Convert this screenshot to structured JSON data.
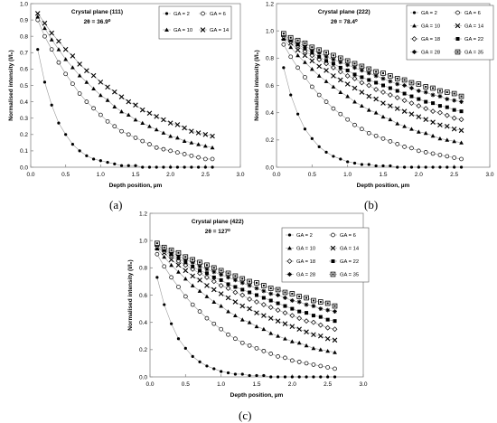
{
  "panel_labels": {
    "a": "(a)",
    "b": "(b)",
    "c": "(c)"
  },
  "chart_data": [
    {
      "type": "scatter",
      "title": "Crystal plane (111)",
      "subtitle": "2θ = 36.9⁰",
      "xlabel": "Depth position, µm",
      "ylabel": "Normalised intensity (I/I₀)",
      "xlim": [
        0.0,
        3.0
      ],
      "ylim": [
        0.0,
        1.0
      ],
      "xticks": [
        "0.0",
        "0.5",
        "1.0",
        "1.5",
        "2.0",
        "2.5",
        "3.0"
      ],
      "yticks": [
        "0.0",
        "0.1",
        "0.2",
        "0.3",
        "0.4",
        "0.5",
        "0.6",
        "0.7",
        "0.8",
        "0.9",
        "1.0"
      ],
      "grid": false,
      "legend_placement": "top-right",
      "x": [
        0.1,
        0.2,
        0.3,
        0.4,
        0.5,
        0.6,
        0.7,
        0.8,
        0.9,
        1.0,
        1.1,
        1.2,
        1.3,
        1.4,
        1.5,
        1.6,
        1.7,
        1.8,
        1.9,
        2.0,
        2.1,
        2.2,
        2.3,
        2.4,
        2.5,
        2.6
      ],
      "series": [
        {
          "name": "GA = 2",
          "marker": "filled-circle",
          "values": [
            0.72,
            0.52,
            0.38,
            0.27,
            0.2,
            0.14,
            0.1,
            0.07,
            0.05,
            0.04,
            0.03,
            0.02,
            0.01,
            0.01,
            0.01,
            0.0,
            0.0,
            0.0,
            0.0,
            0.0,
            0.0,
            0.0,
            0.0,
            0.0,
            0.0,
            0.0
          ]
        },
        {
          "name": "GA = 6",
          "marker": "open-circle",
          "values": [
            0.9,
            0.8,
            0.72,
            0.64,
            0.57,
            0.51,
            0.45,
            0.4,
            0.36,
            0.32,
            0.28,
            0.25,
            0.22,
            0.2,
            0.18,
            0.16,
            0.14,
            0.12,
            0.11,
            0.1,
            0.09,
            0.08,
            0.07,
            0.06,
            0.05,
            0.05
          ]
        },
        {
          "name": "GA = 10",
          "marker": "filled-triangle",
          "values": [
            0.92,
            0.85,
            0.78,
            0.72,
            0.66,
            0.61,
            0.56,
            0.52,
            0.48,
            0.44,
            0.41,
            0.37,
            0.34,
            0.32,
            0.29,
            0.27,
            0.25,
            0.23,
            0.21,
            0.19,
            0.18,
            0.16,
            0.15,
            0.14,
            0.13,
            0.12
          ]
        },
        {
          "name": "GA = 14",
          "marker": "x",
          "values": [
            0.94,
            0.88,
            0.82,
            0.77,
            0.72,
            0.68,
            0.63,
            0.59,
            0.56,
            0.52,
            0.49,
            0.46,
            0.43,
            0.4,
            0.38,
            0.35,
            0.33,
            0.31,
            0.29,
            0.27,
            0.26,
            0.24,
            0.22,
            0.21,
            0.2,
            0.19
          ]
        }
      ]
    },
    {
      "type": "scatter",
      "title": "Crystal plane (222)",
      "subtitle": "2θ = 78.4⁰",
      "xlabel": "Depth position, µm",
      "ylabel": "Normalised intensity (I/I₀)",
      "xlim": [
        0.0,
        3.0
      ],
      "ylim": [
        0.0,
        1.2
      ],
      "xticks": [
        "0.0",
        "0.5",
        "1.0",
        "1.5",
        "2.0",
        "2.5",
        "3.0"
      ],
      "yticks": [
        "0.0",
        "0.2",
        "0.4",
        "0.6",
        "0.8",
        "1.0",
        "1.2"
      ],
      "grid": false,
      "legend_placement": "top-right",
      "x": [
        0.1,
        0.2,
        0.3,
        0.4,
        0.5,
        0.6,
        0.7,
        0.8,
        0.9,
        1.0,
        1.1,
        1.2,
        1.3,
        1.4,
        1.5,
        1.6,
        1.7,
        1.8,
        1.9,
        2.0,
        2.1,
        2.2,
        2.3,
        2.4,
        2.5,
        2.6
      ],
      "series": [
        {
          "name": "GA = 2",
          "marker": "filled-circle",
          "values": [
            0.73,
            0.53,
            0.39,
            0.28,
            0.21,
            0.15,
            0.11,
            0.08,
            0.06,
            0.04,
            0.03,
            0.02,
            0.02,
            0.01,
            0.01,
            0.01,
            0.0,
            0.0,
            0.0,
            0.0,
            0.0,
            0.0,
            0.0,
            0.0,
            0.0,
            0.0
          ]
        },
        {
          "name": "GA = 6",
          "marker": "open-circle",
          "values": [
            0.9,
            0.81,
            0.73,
            0.66,
            0.59,
            0.53,
            0.48,
            0.43,
            0.39,
            0.35,
            0.31,
            0.28,
            0.25,
            0.23,
            0.21,
            0.19,
            0.17,
            0.15,
            0.14,
            0.12,
            0.11,
            0.1,
            0.09,
            0.08,
            0.07,
            0.06
          ]
        },
        {
          "name": "GA = 10",
          "marker": "filled-triangle",
          "values": [
            0.94,
            0.88,
            0.82,
            0.77,
            0.72,
            0.67,
            0.63,
            0.59,
            0.55,
            0.52,
            0.48,
            0.45,
            0.42,
            0.4,
            0.37,
            0.35,
            0.32,
            0.3,
            0.28,
            0.26,
            0.25,
            0.23,
            0.21,
            0.2,
            0.19,
            0.18
          ]
        },
        {
          "name": "GA = 14",
          "marker": "x",
          "values": [
            0.95,
            0.91,
            0.86,
            0.82,
            0.78,
            0.74,
            0.71,
            0.67,
            0.64,
            0.61,
            0.58,
            0.55,
            0.52,
            0.5,
            0.47,
            0.45,
            0.43,
            0.41,
            0.39,
            0.37,
            0.35,
            0.33,
            0.31,
            0.3,
            0.28,
            0.27
          ]
        },
        {
          "name": "GA = 18",
          "marker": "open-diamond",
          "values": [
            0.96,
            0.92,
            0.89,
            0.85,
            0.82,
            0.79,
            0.76,
            0.73,
            0.7,
            0.67,
            0.65,
            0.62,
            0.6,
            0.57,
            0.55,
            0.53,
            0.51,
            0.49,
            0.47,
            0.45,
            0.43,
            0.41,
            0.4,
            0.38,
            0.36,
            0.35
          ]
        },
        {
          "name": "GA = 22",
          "marker": "filled-square",
          "values": [
            0.97,
            0.93,
            0.9,
            0.87,
            0.84,
            0.81,
            0.78,
            0.76,
            0.73,
            0.71,
            0.68,
            0.66,
            0.64,
            0.62,
            0.6,
            0.58,
            0.56,
            0.54,
            0.52,
            0.5,
            0.48,
            0.47,
            0.45,
            0.44,
            0.42,
            0.41
          ]
        },
        {
          "name": "GA = 28",
          "marker": "asterisk",
          "values": [
            0.97,
            0.94,
            0.91,
            0.89,
            0.86,
            0.84,
            0.81,
            0.79,
            0.77,
            0.75,
            0.73,
            0.71,
            0.69,
            0.67,
            0.65,
            0.63,
            0.61,
            0.6,
            0.58,
            0.56,
            0.55,
            0.53,
            0.52,
            0.5,
            0.49,
            0.48
          ]
        },
        {
          "name": "GA = 35",
          "marker": "open-square",
          "values": [
            0.98,
            0.95,
            0.93,
            0.91,
            0.88,
            0.86,
            0.84,
            0.82,
            0.8,
            0.78,
            0.76,
            0.74,
            0.72,
            0.7,
            0.69,
            0.67,
            0.65,
            0.64,
            0.62,
            0.61,
            0.59,
            0.58,
            0.56,
            0.55,
            0.54,
            0.52
          ]
        }
      ]
    },
    {
      "type": "scatter",
      "title": "Crystal plane (422)",
      "subtitle": "2θ = 127⁰",
      "xlabel": "Depth position, µm",
      "ylabel": "Normalised intensity (I/I₀)",
      "xlim": [
        0.0,
        3.0
      ],
      "ylim": [
        0.0,
        1.2
      ],
      "xticks": [
        "0.0",
        "0.5",
        "1.0",
        "1.5",
        "2.0",
        "2.5",
        "3.0"
      ],
      "yticks": [
        "0.0",
        "0.2",
        "0.4",
        "0.6",
        "0.8",
        "1.0",
        "1.2"
      ],
      "grid": false,
      "legend_placement": "top-right",
      "x": [
        0.1,
        0.2,
        0.3,
        0.4,
        0.5,
        0.6,
        0.7,
        0.8,
        0.9,
        1.0,
        1.1,
        1.2,
        1.3,
        1.4,
        1.5,
        1.6,
        1.7,
        1.8,
        1.9,
        2.0,
        2.1,
        2.2,
        2.3,
        2.4,
        2.5,
        2.6
      ],
      "series": [
        {
          "name": "GA = 2",
          "marker": "filled-circle",
          "values": [
            0.73,
            0.53,
            0.39,
            0.28,
            0.21,
            0.15,
            0.11,
            0.08,
            0.06,
            0.04,
            0.03,
            0.02,
            0.02,
            0.01,
            0.01,
            0.01,
            0.0,
            0.0,
            0.0,
            0.0,
            0.0,
            0.0,
            0.0,
            0.0,
            0.0,
            0.0
          ]
        },
        {
          "name": "GA = 6",
          "marker": "open-circle",
          "values": [
            0.9,
            0.81,
            0.73,
            0.66,
            0.59,
            0.53,
            0.48,
            0.43,
            0.39,
            0.35,
            0.31,
            0.28,
            0.25,
            0.23,
            0.21,
            0.19,
            0.17,
            0.15,
            0.14,
            0.12,
            0.11,
            0.1,
            0.09,
            0.08,
            0.07,
            0.06
          ]
        },
        {
          "name": "GA = 10",
          "marker": "filled-triangle",
          "values": [
            0.94,
            0.88,
            0.82,
            0.77,
            0.72,
            0.67,
            0.63,
            0.59,
            0.55,
            0.52,
            0.48,
            0.45,
            0.42,
            0.4,
            0.37,
            0.35,
            0.32,
            0.3,
            0.28,
            0.26,
            0.25,
            0.23,
            0.21,
            0.2,
            0.19,
            0.18
          ]
        },
        {
          "name": "GA = 14",
          "marker": "x",
          "values": [
            0.95,
            0.91,
            0.86,
            0.82,
            0.78,
            0.74,
            0.71,
            0.67,
            0.64,
            0.61,
            0.58,
            0.55,
            0.52,
            0.5,
            0.47,
            0.45,
            0.43,
            0.41,
            0.39,
            0.37,
            0.35,
            0.33,
            0.31,
            0.3,
            0.28,
            0.27
          ]
        },
        {
          "name": "GA = 18",
          "marker": "open-diamond",
          "values": [
            0.96,
            0.92,
            0.89,
            0.85,
            0.82,
            0.79,
            0.76,
            0.73,
            0.7,
            0.67,
            0.65,
            0.62,
            0.6,
            0.57,
            0.55,
            0.53,
            0.51,
            0.49,
            0.47,
            0.45,
            0.43,
            0.41,
            0.4,
            0.38,
            0.36,
            0.35
          ]
        },
        {
          "name": "GA = 22",
          "marker": "filled-square",
          "values": [
            0.97,
            0.93,
            0.9,
            0.87,
            0.84,
            0.81,
            0.78,
            0.76,
            0.73,
            0.71,
            0.68,
            0.66,
            0.64,
            0.62,
            0.6,
            0.58,
            0.56,
            0.54,
            0.52,
            0.5,
            0.48,
            0.47,
            0.45,
            0.44,
            0.42,
            0.41
          ]
        },
        {
          "name": "GA = 28",
          "marker": "asterisk",
          "values": [
            0.97,
            0.94,
            0.91,
            0.89,
            0.86,
            0.84,
            0.81,
            0.79,
            0.77,
            0.75,
            0.73,
            0.71,
            0.69,
            0.67,
            0.65,
            0.63,
            0.61,
            0.6,
            0.58,
            0.56,
            0.55,
            0.53,
            0.52,
            0.5,
            0.49,
            0.48
          ]
        },
        {
          "name": "GA = 35",
          "marker": "open-square",
          "values": [
            0.98,
            0.95,
            0.93,
            0.91,
            0.88,
            0.86,
            0.84,
            0.82,
            0.8,
            0.78,
            0.76,
            0.74,
            0.72,
            0.7,
            0.69,
            0.67,
            0.65,
            0.64,
            0.62,
            0.61,
            0.59,
            0.58,
            0.56,
            0.55,
            0.54,
            0.52
          ]
        }
      ]
    }
  ]
}
